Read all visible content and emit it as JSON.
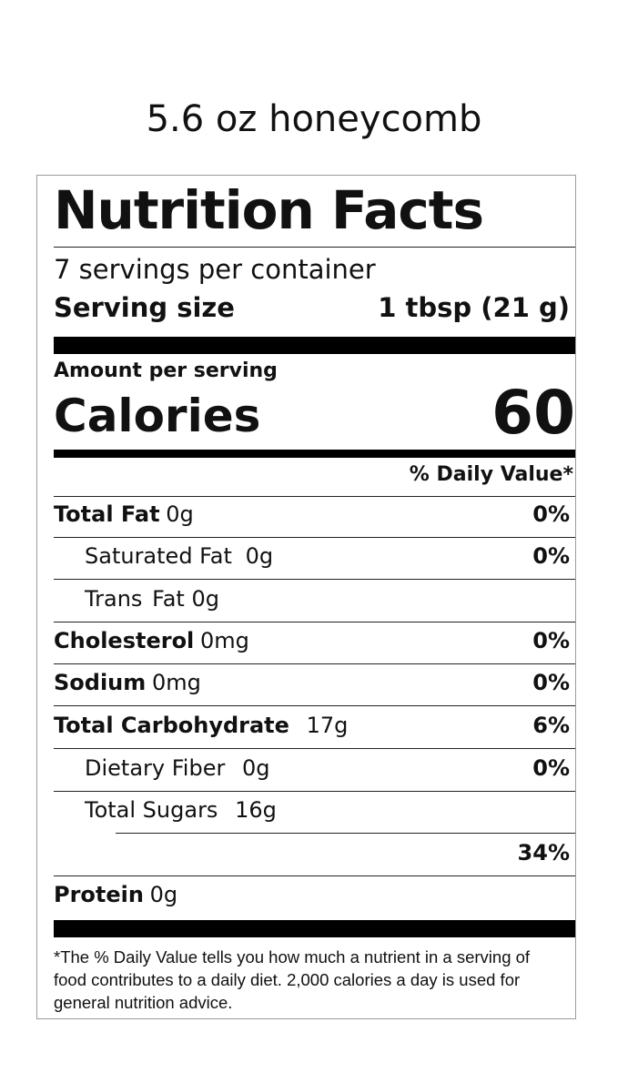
{
  "product_title": "5.6 oz honeycomb",
  "label": {
    "title": "Nutrition Facts",
    "servings_per_container": "7 servings per container",
    "serving_size_label": "Serving size",
    "serving_size_value": "1 tbsp (21 g)",
    "amount_per_serving": "Amount per serving",
    "calories_label": "Calories",
    "calories_value": "60",
    "daily_value_header": "% Daily Value*",
    "nutrients": [
      {
        "name": "Total Fat",
        "amount": "0g",
        "dv": "0%"
      },
      {
        "name": "Saturated Fat",
        "amount": "0g",
        "dv": "0%"
      },
      {
        "name": "Trans",
        "amount": "Fat 0g",
        "dv": ""
      },
      {
        "name": "Cholesterol",
        "amount": "0mg",
        "dv": "0%"
      },
      {
        "name": "Sodium",
        "amount": "0mg",
        "dv": "0%"
      },
      {
        "name": "Total Carbohydrate",
        "amount": "17g",
        "dv": "6%"
      },
      {
        "name": "Dietary Fiber",
        "amount": "0g",
        "dv": "0%"
      },
      {
        "name": "Total Sugars",
        "amount": "16g",
        "dv": ""
      },
      {
        "name": "",
        "amount": "",
        "dv": "34%"
      },
      {
        "name": "Protein",
        "amount": "0g",
        "dv": ""
      }
    ],
    "footnote": "*The % Daily Value tells you how much a nutrient in a serving of food contributes to a daily diet. 2,000 calories a day is used for general nutrition advice."
  }
}
